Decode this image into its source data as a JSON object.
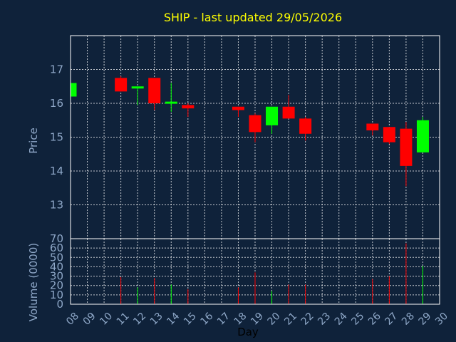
{
  "chart_data": {
    "type": "candlestick",
    "title": "SHIP - last updated 29/05/2026",
    "xlabel": "Day",
    "price_panel": {
      "ylabel": "Price",
      "ylim": [
        12,
        18
      ],
      "yticks": [
        13,
        14,
        15,
        16,
        17
      ],
      "grid": true
    },
    "volume_panel": {
      "ylabel": "Volume (0000)",
      "ylim": [
        0,
        70
      ],
      "yticks": [
        0,
        10,
        20,
        30,
        40,
        50,
        60,
        70
      ],
      "grid": true
    },
    "x_ticks": [
      "08",
      "09",
      "10",
      "11",
      "12",
      "13",
      "14",
      "15",
      "16",
      "17",
      "18",
      "19",
      "20",
      "21",
      "22",
      "23",
      "24",
      "25",
      "26",
      "27",
      "28",
      "29",
      "30"
    ],
    "candles": [
      {
        "day": "08",
        "open": 16.2,
        "high": 16.6,
        "low": 16.2,
        "close": 16.6,
        "volume": 0
      },
      {
        "day": "11",
        "open": 16.75,
        "high": 16.8,
        "low": 16.35,
        "close": 16.35,
        "volume": 29
      },
      {
        "day": "12",
        "open": 16.45,
        "high": 16.5,
        "low": 15.95,
        "close": 16.5,
        "volume": 18
      },
      {
        "day": "13",
        "open": 16.75,
        "high": 16.75,
        "low": 15.8,
        "close": 16.0,
        "volume": 28
      },
      {
        "day": "14",
        "open": 16.0,
        "high": 16.6,
        "low": 15.75,
        "close": 16.05,
        "volume": 21
      },
      {
        "day": "15",
        "open": 15.95,
        "high": 16.0,
        "low": 15.6,
        "close": 15.85,
        "volume": 16
      },
      {
        "day": "18",
        "open": 15.9,
        "high": 15.9,
        "low": 15.6,
        "close": 15.8,
        "volume": 18
      },
      {
        "day": "19",
        "open": 15.65,
        "high": 15.7,
        "low": 14.85,
        "close": 15.15,
        "volume": 34
      },
      {
        "day": "20",
        "open": 15.35,
        "high": 15.9,
        "low": 15.1,
        "close": 15.9,
        "volume": 14
      },
      {
        "day": "21",
        "open": 15.9,
        "high": 16.25,
        "low": 15.55,
        "close": 15.55,
        "volume": 21
      },
      {
        "day": "22",
        "open": 15.55,
        "high": 15.6,
        "low": 14.9,
        "close": 15.1,
        "volume": 21
      },
      {
        "day": "26",
        "open": 15.4,
        "high": 15.4,
        "low": 15.05,
        "close": 15.2,
        "volume": 27
      },
      {
        "day": "27",
        "open": 15.3,
        "high": 15.3,
        "low": 14.8,
        "close": 14.85,
        "volume": 30
      },
      {
        "day": "28",
        "open": 15.25,
        "high": 15.45,
        "low": 13.55,
        "close": 14.15,
        "volume": 65
      },
      {
        "day": "29",
        "open": 14.55,
        "high": 15.6,
        "low": 14.55,
        "close": 15.5,
        "volume": 41
      }
    ],
    "colors": {
      "background": "#0f223a",
      "up": "#00ff00",
      "down": "#ff0000",
      "title": "#ffff00",
      "axis_text": "#8fa8c8",
      "grid": "#ffffff"
    }
  }
}
